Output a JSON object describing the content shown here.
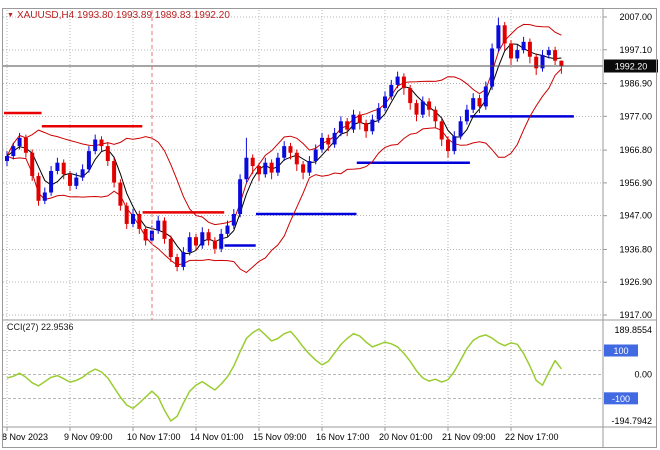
{
  "title": {
    "dropdown_icon": "▼",
    "text": "XAUUSD,H4 1993.80 1993.89 1989.83 1992.20",
    "symbol": "XAUUSD",
    "timeframe": "H4",
    "open": "1993.80",
    "high": "1993.89",
    "low": "1989.83",
    "close": "1992.20"
  },
  "indicator": {
    "label": "CCI(27) 22.9536",
    "name": "CCI",
    "period": "27",
    "value": "22.9536"
  },
  "colors": {
    "bull": "#0a0adc",
    "bear": "#e00000",
    "ma_fast": "#000000",
    "band": "#cc0000",
    "trend_up": "#0000d8",
    "trend_down": "#e80000",
    "cci_line": "#9acd32",
    "grid": "#b4b4b4",
    "level_dash": "#b8b8b8",
    "frame": "#9a9a9a",
    "axis_text": "#000000",
    "price_tag_bg": "#0b0b0b",
    "price_tag_text": "#ffffff",
    "level_box_bg": "#4169e1",
    "level_box_text": "#ffffff",
    "current_price_line": "#4d4d4d",
    "event_vline": "#e87070",
    "title_text": "#bb2222"
  },
  "chart_data": {
    "type": "candlestick",
    "symbol": "XAUUSD",
    "timeframe": "H4",
    "price_axis_labels": [
      "2007.00",
      "1997.10",
      "1986.90",
      "1977.00",
      "1966.80",
      "1956.90",
      "1947.00",
      "1936.80",
      "1926.90",
      "1917.00"
    ],
    "price_max": 2007.0,
    "price_min": 1917.0,
    "current_price": 1992.2,
    "current_price_label": "1992.20",
    "time_labels": [
      "8 Nov 2023",
      "9 Nov 09:00",
      "10 Nov 17:00",
      "14 Nov 01:00",
      "15 Nov 09:00",
      "16 Nov 17:00",
      "20 Nov 01:00",
      "21 Nov 09:00",
      "22 Nov 17:00"
    ],
    "time_tick_indices": [
      0,
      10,
      20,
      30,
      40,
      50,
      60,
      70,
      80
    ],
    "event_vline_index": 23,
    "candles": [
      [
        1963.5,
        1966.5,
        1962.0,
        1965.0
      ],
      [
        1965.0,
        1969.0,
        1964.0,
        1968.0
      ],
      [
        1968.0,
        1972.0,
        1967.0,
        1970.5
      ],
      [
        1970.5,
        1971.5,
        1964.5,
        1966.0
      ],
      [
        1966.0,
        1967.0,
        1957.5,
        1959.0
      ],
      [
        1959.0,
        1960.0,
        1950.0,
        1951.5
      ],
      [
        1951.5,
        1955.5,
        1950.5,
        1954.0
      ],
      [
        1954.0,
        1962.0,
        1953.0,
        1960.5
      ],
      [
        1960.5,
        1964.5,
        1959.5,
        1963.0
      ],
      [
        1963.0,
        1964.0,
        1958.0,
        1959.5
      ],
      [
        1959.5,
        1960.5,
        1954.5,
        1956.0
      ],
      [
        1956.0,
        1960.0,
        1955.0,
        1958.5
      ],
      [
        1958.5,
        1962.5,
        1957.5,
        1961.0
      ],
      [
        1961.0,
        1968.0,
        1960.0,
        1966.5
      ],
      [
        1966.5,
        1971.5,
        1965.5,
        1970.0
      ],
      [
        1970.0,
        1971.0,
        1966.5,
        1968.0
      ],
      [
        1968.0,
        1969.0,
        1962.0,
        1963.5
      ],
      [
        1963.5,
        1964.5,
        1955.5,
        1957.0
      ],
      [
        1957.0,
        1958.0,
        1948.5,
        1950.0
      ],
      [
        1950.0,
        1951.0,
        1943.0,
        1944.5
      ],
      [
        1944.5,
        1949.0,
        1943.5,
        1947.5
      ],
      [
        1947.5,
        1948.5,
        1941.5,
        1943.0
      ],
      [
        1943.0,
        1944.0,
        1938.0,
        1939.5
      ],
      [
        1939.5,
        1944.0,
        1938.5,
        1942.5
      ],
      [
        1942.5,
        1947.0,
        1941.5,
        1945.5
      ],
      [
        1945.5,
        1946.5,
        1938.5,
        1940.0
      ],
      [
        1940.0,
        1941.0,
        1933.0,
        1934.5
      ],
      [
        1934.5,
        1935.5,
        1930.2,
        1931.5
      ],
      [
        1931.5,
        1937.5,
        1930.5,
        1936.0
      ],
      [
        1936.0,
        1942.0,
        1935.0,
        1940.5
      ],
      [
        1940.5,
        1941.5,
        1936.5,
        1938.0
      ],
      [
        1938.0,
        1943.5,
        1937.0,
        1942.0
      ],
      [
        1942.0,
        1943.0,
        1938.0,
        1939.5
      ],
      [
        1939.5,
        1940.5,
        1935.5,
        1937.0
      ],
      [
        1937.0,
        1943.0,
        1936.0,
        1941.5
      ],
      [
        1941.5,
        1945.5,
        1940.5,
        1944.0
      ],
      [
        1944.0,
        1949.0,
        1943.0,
        1947.5
      ],
      [
        1947.5,
        1959.5,
        1946.5,
        1958.0
      ],
      [
        1958.0,
        1970.5,
        1957.0,
        1964.5
      ],
      [
        1964.5,
        1965.5,
        1959.5,
        1962.0
      ],
      [
        1962.0,
        1963.0,
        1957.5,
        1959.5
      ],
      [
        1959.5,
        1964.5,
        1958.5,
        1963.0
      ],
      [
        1963.0,
        1964.0,
        1958.0,
        1960.0
      ],
      [
        1960.0,
        1966.0,
        1959.0,
        1964.5
      ],
      [
        1964.5,
        1969.5,
        1963.5,
        1968.0
      ],
      [
        1968.0,
        1969.0,
        1964.0,
        1966.0
      ],
      [
        1966.0,
        1967.0,
        1960.5,
        1962.5
      ],
      [
        1962.5,
        1963.5,
        1958.0,
        1960.0
      ],
      [
        1960.0,
        1965.0,
        1959.0,
        1963.5
      ],
      [
        1963.5,
        1968.5,
        1962.5,
        1967.0
      ],
      [
        1967.0,
        1972.0,
        1966.0,
        1970.5
      ],
      [
        1970.5,
        1971.5,
        1966.5,
        1968.5
      ],
      [
        1968.5,
        1973.5,
        1967.5,
        1972.0
      ],
      [
        1972.0,
        1977.0,
        1971.0,
        1975.5
      ],
      [
        1975.5,
        1976.5,
        1971.0,
        1973.0
      ],
      [
        1973.0,
        1979.0,
        1972.0,
        1977.5
      ],
      [
        1977.5,
        1978.5,
        1973.0,
        1975.0
      ],
      [
        1975.0,
        1976.0,
        1970.5,
        1972.5
      ],
      [
        1972.5,
        1977.5,
        1971.5,
        1976.0
      ],
      [
        1976.0,
        1981.0,
        1975.0,
        1979.5
      ],
      [
        1979.5,
        1984.5,
        1978.5,
        1983.0
      ],
      [
        1983.0,
        1988.0,
        1982.0,
        1986.5
      ],
      [
        1986.5,
        1990.5,
        1985.5,
        1989.0
      ],
      [
        1989.0,
        1990.0,
        1983.5,
        1985.5
      ],
      [
        1985.5,
        1986.5,
        1979.0,
        1981.0
      ],
      [
        1981.0,
        1982.0,
        1975.5,
        1977.5
      ],
      [
        1977.5,
        1983.0,
        1976.5,
        1981.5
      ],
      [
        1981.5,
        1982.5,
        1977.0,
        1979.0
      ],
      [
        1979.0,
        1980.0,
        1973.5,
        1975.5
      ],
      [
        1975.5,
        1976.5,
        1968.0,
        1970.0
      ],
      [
        1970.0,
        1971.0,
        1964.5,
        1966.5
      ],
      [
        1966.5,
        1972.5,
        1965.5,
        1971.0
      ],
      [
        1971.0,
        1977.0,
        1970.0,
        1975.5
      ],
      [
        1975.5,
        1980.5,
        1974.5,
        1979.0
      ],
      [
        1979.0,
        1984.0,
        1978.0,
        1982.5
      ],
      [
        1982.5,
        1983.5,
        1978.0,
        1980.0
      ],
      [
        1980.0,
        1987.5,
        1979.0,
        1986.0
      ],
      [
        1986.0,
        1999.0,
        1985.0,
        1997.5
      ],
      [
        1997.5,
        2006.8,
        1996.5,
        2004.5
      ],
      [
        2004.5,
        2005.5,
        1997.0,
        1999.0
      ],
      [
        1999.0,
        2000.0,
        1992.5,
        1994.5
      ],
      [
        1994.5,
        1998.5,
        1993.5,
        1997.0
      ],
      [
        1997.0,
        2001.0,
        1996.0,
        1999.5
      ],
      [
        1999.5,
        2000.5,
        1993.0,
        1995.0
      ],
      [
        1995.0,
        1996.0,
        1989.5,
        1991.5
      ],
      [
        1991.5,
        1997.0,
        1990.5,
        1995.5
      ],
      [
        1995.5,
        1998.0,
        1994.5,
        1997.0
      ],
      [
        1997.0,
        1998.0,
        1992.5,
        1993.8
      ],
      [
        1993.8,
        1993.89,
        1989.83,
        1992.2
      ]
    ],
    "overlays": {
      "trend_down_steps": [
        [
          0,
          5,
          1978
        ],
        [
          6,
          21,
          1974
        ],
        [
          22,
          34,
          1948
        ]
      ],
      "trend_up_steps": [
        [
          35,
          39,
          1938
        ],
        [
          40,
          55,
          1947.5
        ],
        [
          56,
          73,
          1963
        ],
        [
          74,
          89.5,
          1977
        ]
      ],
      "ma_fast_period": 4,
      "band_period": 12,
      "band_dev": 1.5
    },
    "cci": {
      "period": 27,
      "current": 22.9536,
      "scale_max": 189.8554,
      "scale_min": -194.7942,
      "levels": [
        100,
        0,
        -100
      ],
      "axis_labels": {
        "max": "189.8554",
        "upper": "100",
        "zero": "0.00",
        "lower": "-100",
        "min": "-194.7942"
      },
      "values": [
        -15,
        -8,
        5,
        -12,
        -35,
        -48,
        -30,
        -12,
        -5,
        -18,
        -32,
        -25,
        -12,
        8,
        22,
        10,
        -15,
        -55,
        -95,
        -128,
        -142,
        -120,
        -95,
        -70,
        -95,
        -150,
        -194.7942,
        -175,
        -120,
        -70,
        -45,
        -30,
        -48,
        -65,
        -40,
        -10,
        35,
        95,
        150,
        175,
        189.8554,
        165,
        140,
        150,
        170,
        180,
        150,
        115,
        85,
        60,
        40,
        55,
        90,
        125,
        150,
        170,
        160,
        135,
        115,
        125,
        135,
        128,
        115,
        88,
        55,
        15,
        -15,
        -28,
        -20,
        -32,
        -22,
        12,
        60,
        108,
        142,
        158,
        165,
        152,
        132,
        120,
        132,
        126,
        88,
        35,
        -25,
        -45,
        8,
        58,
        22.9536
      ]
    }
  }
}
